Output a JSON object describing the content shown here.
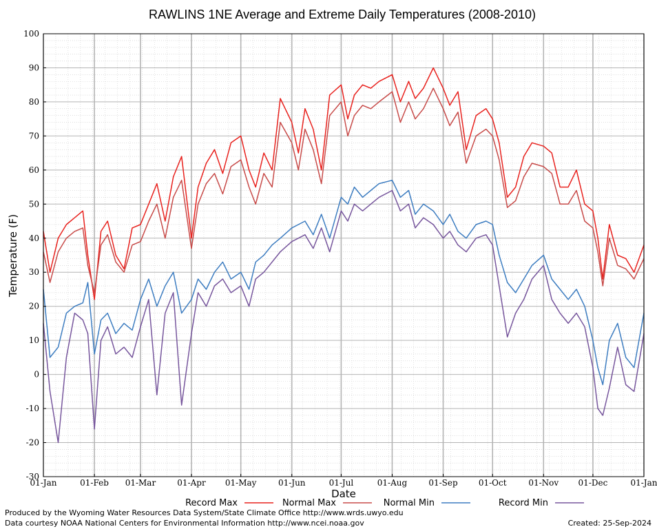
{
  "chart_data": {
    "type": "line",
    "title": "RAWLINS 1NE Average and Extreme Daily Temperatures (2008-2010)",
    "xlabel": "Date",
    "ylabel": "Temperature (F)",
    "ylim": [
      -30,
      100
    ],
    "yticks": [
      -30,
      -20,
      -10,
      0,
      10,
      20,
      30,
      40,
      50,
      60,
      70,
      80,
      90,
      100
    ],
    "xticks": [
      {
        "label": "01-Jan",
        "day": 1
      },
      {
        "label": "01-Feb",
        "day": 32
      },
      {
        "label": "01-Mar",
        "day": 60
      },
      {
        "label": "01-Apr",
        "day": 91
      },
      {
        "label": "01-May",
        "day": 121
      },
      {
        "label": "01-Jun",
        "day": 152
      },
      {
        "label": "01-Jul",
        "day": 182
      },
      {
        "label": "01-Aug",
        "day": 213
      },
      {
        "label": "01-Sep",
        "day": 244
      },
      {
        "label": "01-Oct",
        "day": 274
      },
      {
        "label": "01-Nov",
        "day": 305
      },
      {
        "label": "01-Dec",
        "day": 335
      },
      {
        "label": "01-Jan",
        "day": 366
      }
    ],
    "grid": true,
    "legend_position": "bottom",
    "x_note": "x values are day of year (1 = 01-Jan)",
    "series": [
      {
        "name": "Record Max",
        "color": "#e8201c",
        "x": [
          1,
          5,
          10,
          15,
          20,
          25,
          28,
          32,
          36,
          40,
          45,
          50,
          55,
          60,
          65,
          70,
          75,
          80,
          85,
          91,
          95,
          100,
          105,
          110,
          115,
          121,
          126,
          130,
          135,
          140,
          145,
          152,
          156,
          160,
          165,
          170,
          175,
          182,
          186,
          190,
          195,
          200,
          205,
          213,
          218,
          223,
          227,
          232,
          238,
          244,
          248,
          253,
          258,
          264,
          270,
          274,
          278,
          283,
          288,
          293,
          298,
          305,
          310,
          315,
          320,
          325,
          330,
          335,
          338,
          341,
          345,
          350,
          355,
          360,
          366
        ],
        "y": [
          42,
          30,
          40,
          44,
          46,
          48,
          35,
          22,
          42,
          45,
          35,
          31,
          43,
          44,
          50,
          56,
          45,
          58,
          64,
          40,
          55,
          62,
          66,
          59,
          68,
          70,
          60,
          55,
          65,
          60,
          81,
          74,
          65,
          78,
          72,
          60,
          82,
          85,
          75,
          82,
          85,
          84,
          86,
          88,
          80,
          86,
          81,
          84,
          90,
          84,
          79,
          83,
          66,
          76,
          78,
          75,
          68,
          52,
          55,
          64,
          68,
          67,
          65,
          55,
          55,
          60,
          50,
          48,
          40,
          28,
          44,
          35,
          34,
          30,
          38
        ]
      },
      {
        "name": "Normal Max",
        "color": "#c74a48",
        "x": [
          1,
          5,
          10,
          15,
          20,
          25,
          28,
          32,
          36,
          40,
          45,
          50,
          55,
          60,
          65,
          70,
          75,
          80,
          85,
          91,
          95,
          100,
          105,
          110,
          115,
          121,
          126,
          130,
          135,
          140,
          145,
          152,
          156,
          160,
          165,
          170,
          175,
          182,
          186,
          190,
          195,
          200,
          205,
          213,
          218,
          223,
          227,
          232,
          238,
          244,
          248,
          253,
          258,
          264,
          270,
          274,
          278,
          283,
          288,
          293,
          298,
          305,
          310,
          315,
          320,
          325,
          330,
          335,
          338,
          341,
          345,
          350,
          355,
          360,
          366
        ],
        "y": [
          36,
          27,
          36,
          40,
          42,
          43,
          32,
          24,
          38,
          41,
          33,
          30,
          38,
          39,
          45,
          50,
          40,
          52,
          57,
          37,
          50,
          56,
          59,
          53,
          61,
          63,
          55,
          50,
          59,
          55,
          74,
          68,
          60,
          72,
          66,
          56,
          76,
          80,
          70,
          76,
          79,
          78,
          80,
          83,
          74,
          80,
          75,
          78,
          84,
          78,
          73,
          77,
          62,
          70,
          72,
          70,
          63,
          49,
          51,
          58,
          62,
          61,
          59,
          50,
          50,
          54,
          45,
          43,
          36,
          26,
          40,
          32,
          31,
          28,
          34
        ]
      },
      {
        "name": "Normal Min",
        "color": "#3c7cc0",
        "x": [
          1,
          5,
          10,
          15,
          20,
          25,
          28,
          32,
          36,
          40,
          45,
          50,
          55,
          60,
          65,
          70,
          75,
          80,
          85,
          91,
          95,
          100,
          105,
          110,
          115,
          121,
          126,
          130,
          135,
          140,
          145,
          152,
          156,
          160,
          165,
          170,
          175,
          182,
          186,
          190,
          195,
          200,
          205,
          213,
          218,
          223,
          227,
          232,
          238,
          244,
          248,
          253,
          258,
          264,
          270,
          274,
          278,
          283,
          288,
          293,
          298,
          305,
          310,
          315,
          320,
          325,
          330,
          335,
          338,
          341,
          345,
          350,
          355,
          360,
          366
        ],
        "y": [
          25,
          5,
          8,
          18,
          20,
          21,
          27,
          6,
          16,
          18,
          12,
          15,
          13,
          22,
          28,
          20,
          26,
          30,
          18,
          22,
          28,
          25,
          30,
          33,
          28,
          30,
          25,
          33,
          35,
          38,
          40,
          43,
          44,
          45,
          41,
          47,
          40,
          52,
          50,
          55,
          52,
          54,
          56,
          57,
          52,
          54,
          47,
          50,
          48,
          44,
          47,
          42,
          40,
          44,
          45,
          44,
          35,
          27,
          24,
          28,
          32,
          35,
          28,
          25,
          22,
          25,
          20,
          10,
          2,
          -3,
          10,
          15,
          5,
          2,
          18
        ]
      },
      {
        "name": "Record Min",
        "color": "#76559c",
        "x": [
          1,
          5,
          10,
          15,
          20,
          25,
          28,
          32,
          36,
          40,
          45,
          50,
          55,
          60,
          65,
          70,
          75,
          80,
          85,
          91,
          95,
          100,
          105,
          110,
          115,
          121,
          126,
          130,
          135,
          140,
          145,
          152,
          156,
          160,
          165,
          170,
          175,
          182,
          186,
          190,
          195,
          200,
          205,
          213,
          218,
          223,
          227,
          232,
          238,
          244,
          248,
          253,
          258,
          264,
          270,
          274,
          278,
          283,
          288,
          293,
          298,
          305,
          310,
          315,
          320,
          325,
          330,
          335,
          338,
          341,
          345,
          350,
          355,
          360,
          366
        ],
        "y": [
          15,
          -5,
          -20,
          5,
          18,
          16,
          12,
          -16,
          10,
          14,
          6,
          8,
          5,
          14,
          22,
          -6,
          18,
          24,
          -9,
          12,
          24,
          20,
          26,
          28,
          24,
          26,
          20,
          28,
          30,
          33,
          36,
          39,
          40,
          41,
          37,
          43,
          36,
          48,
          45,
          50,
          48,
          50,
          52,
          54,
          48,
          50,
          43,
          46,
          44,
          40,
          42,
          38,
          36,
          40,
          41,
          38,
          26,
          11,
          18,
          22,
          28,
          32,
          22,
          18,
          15,
          18,
          14,
          2,
          -10,
          -12,
          -4,
          8,
          -3,
          -5,
          12
        ]
      }
    ]
  },
  "footer": {
    "credit1": "Produced by the Wyoming Water Resources Data System/State Climate Office http://www.wrds.uwyo.edu",
    "credit2": "Data courtesy NOAA National Centers for Environmental Information http://www.ncei.noaa.gov",
    "created": "Created:  25-Sep-2024"
  }
}
